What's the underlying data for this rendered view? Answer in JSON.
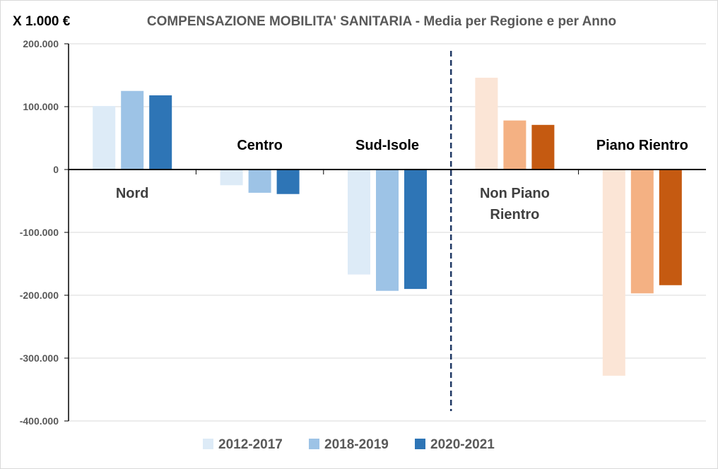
{
  "chart_data": {
    "type": "bar",
    "title": "COMPENSAZIONE MOBILITA' SANITARIA - Media per Regione e per Anno",
    "unit_label": "X 1.000 €",
    "ylim": [
      -400000,
      200000
    ],
    "y_ticks": [
      200000,
      100000,
      0,
      -100000,
      -200000,
      -300000,
      -400000
    ],
    "y_tick_labels": [
      "200.000",
      "100.000",
      "0",
      "-100.000",
      "-200.000",
      "-300.000",
      "-400.000"
    ],
    "grid": true,
    "legend_position": "bottom",
    "categories": [
      "Nord",
      "Centro",
      "Sud-Isole",
      "Non Piano Rientro",
      "Piano Rientro"
    ],
    "category_label_lines": [
      [
        "Nord"
      ],
      [
        "Centro"
      ],
      [
        "Sud-Isole"
      ],
      [
        "Non Piano",
        "Rientro"
      ],
      [
        "Piano Rientro"
      ]
    ],
    "series": [
      {
        "name": "2012-2017",
        "values": [
          101000,
          -25000,
          -167000,
          146000,
          -328000
        ]
      },
      {
        "name": "2018-2019",
        "values": [
          125000,
          -37000,
          -193000,
          78000,
          -197000
        ]
      },
      {
        "name": "2020-2021",
        "values": [
          118000,
          -39000,
          -190000,
          71000,
          -184000
        ]
      }
    ],
    "separator": "dashed vertical line between Sud-Isole and Non Piano Rientro",
    "colors": {
      "blue": [
        "#ddebf7",
        "#9dc3e6",
        "#2e75b6"
      ],
      "orange": [
        "#fbe5d6",
        "#f4b183",
        "#c55a11"
      ],
      "legend": [
        "#ddebf7",
        "#9dc3e6",
        "#2e75b6"
      ],
      "axis": "#000000",
      "grid": "#d9d9d9",
      "separator": "#1f3864",
      "title": "#595959",
      "tick_label": "#595959"
    }
  }
}
